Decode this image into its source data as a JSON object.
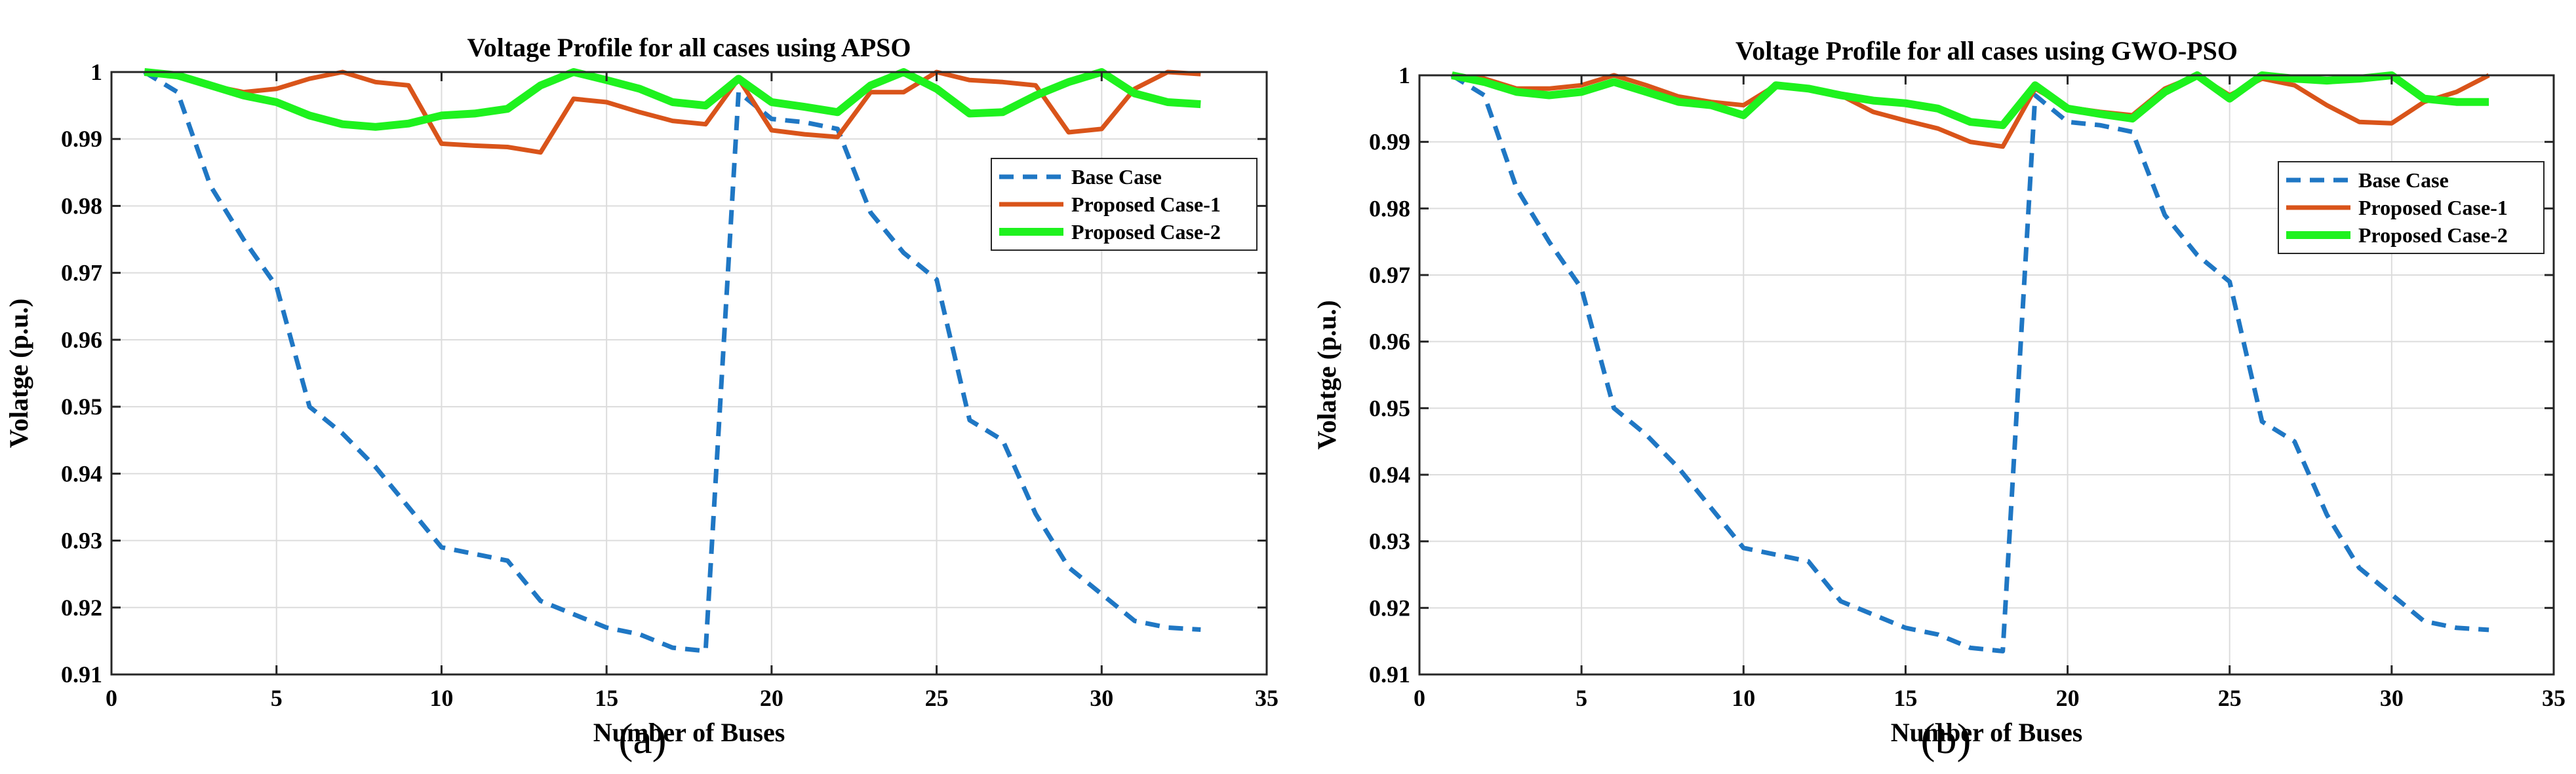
{
  "chart_data": [
    {
      "type": "line",
      "panel_label": "(a)",
      "title": "Voltage Profile for all cases using APSO",
      "xlabel": "Number of Buses",
      "ylabel": "Volatge (p.u.)",
      "xlim": [
        0,
        35
      ],
      "ylim": [
        0.91,
        1.0
      ],
      "xticks": [
        0,
        5,
        10,
        15,
        20,
        25,
        30,
        35
      ],
      "xtick_labels": [
        "0",
        "5",
        "10",
        "15",
        "20",
        "25",
        "30",
        "35"
      ],
      "yticks": [
        0.91,
        0.92,
        0.93,
        0.94,
        0.95,
        0.96,
        0.97,
        0.98,
        0.99,
        1.0
      ],
      "ytick_labels": [
        "0.91",
        "0.92",
        "0.93",
        "0.94",
        "0.95",
        "0.96",
        "0.97",
        "0.98",
        "0.99",
        "1"
      ],
      "grid": true,
      "legend_position": "right",
      "x": [
        1,
        2,
        3,
        4,
        5,
        6,
        7,
        8,
        9,
        10,
        11,
        12,
        13,
        14,
        15,
        16,
        17,
        18,
        19,
        20,
        21,
        22,
        23,
        24,
        25,
        26,
        27,
        28,
        29,
        30,
        31,
        32,
        33
      ],
      "series": [
        {
          "name": "Base Case",
          "color": "#1f77c4",
          "style": "dashed",
          "values": [
            1.0,
            0.997,
            0.983,
            0.975,
            0.968,
            0.95,
            0.946,
            0.941,
            0.935,
            0.929,
            0.928,
            0.927,
            0.921,
            0.919,
            0.917,
            0.916,
            0.914,
            0.9135,
            0.997,
            0.993,
            0.9925,
            0.9915,
            0.979,
            0.973,
            0.969,
            0.948,
            0.945,
            0.934,
            0.926,
            0.922,
            0.918,
            0.917,
            0.9167
          ]
        },
        {
          "name": "Proposed Case-1",
          "color": "#d9541a",
          "style": "solid",
          "values": [
            1.0,
            0.9995,
            0.998,
            0.997,
            0.9975,
            0.999,
            1.0,
            0.9985,
            0.998,
            0.9893,
            0.989,
            0.9888,
            0.988,
            0.996,
            0.9955,
            0.994,
            0.9927,
            0.9922,
            0.999,
            0.9913,
            0.9907,
            0.9903,
            0.997,
            0.997,
            1.0,
            0.9988,
            0.9985,
            0.998,
            0.991,
            0.9915,
            0.9975,
            1.0,
            0.9997
          ]
        },
        {
          "name": "Proposed Case-2",
          "color": "#1ef21e",
          "style": "solid",
          "values": [
            1.0,
            0.9995,
            0.998,
            0.9965,
            0.9955,
            0.9935,
            0.9922,
            0.9918,
            0.9923,
            0.9935,
            0.9938,
            0.9945,
            0.998,
            1.0,
            0.9988,
            0.9975,
            0.9955,
            0.995,
            0.999,
            0.9955,
            0.9948,
            0.994,
            0.998,
            1.0,
            0.9975,
            0.9938,
            0.994,
            0.9965,
            0.9985,
            1.0,
            0.9968,
            0.9955,
            0.9952
          ]
        }
      ]
    },
    {
      "type": "line",
      "panel_label": "(b)",
      "title": "Voltage Profile for all cases using GWO-PSO",
      "xlabel": "Number of Buses",
      "ylabel": "Volatge (p.u.)",
      "xlim": [
        0,
        35
      ],
      "ylim": [
        0.91,
        1.0
      ],
      "xticks": [
        0,
        5,
        10,
        15,
        20,
        25,
        30,
        35
      ],
      "xtick_labels": [
        "0",
        "5",
        "10",
        "15",
        "20",
        "25",
        "30",
        "35"
      ],
      "yticks": [
        0.91,
        0.92,
        0.93,
        0.94,
        0.95,
        0.96,
        0.97,
        0.98,
        0.99,
        1.0
      ],
      "ytick_labels": [
        "0.91",
        "0.92",
        "0.93",
        "0.94",
        "0.95",
        "0.96",
        "0.97",
        "0.98",
        "0.99",
        "1"
      ],
      "grid": true,
      "legend_position": "right",
      "x": [
        1,
        2,
        3,
        4,
        5,
        6,
        7,
        8,
        9,
        10,
        11,
        12,
        13,
        14,
        15,
        16,
        17,
        18,
        19,
        20,
        21,
        22,
        23,
        24,
        25,
        26,
        27,
        28,
        29,
        30,
        31,
        32,
        33
      ],
      "series": [
        {
          "name": "Base Case",
          "color": "#1f77c4",
          "style": "dashed",
          "values": [
            1.0,
            0.997,
            0.983,
            0.975,
            0.968,
            0.95,
            0.946,
            0.941,
            0.935,
            0.929,
            0.928,
            0.927,
            0.921,
            0.919,
            0.917,
            0.916,
            0.914,
            0.9135,
            0.997,
            0.993,
            0.9925,
            0.9915,
            0.979,
            0.973,
            0.969,
            0.948,
            0.945,
            0.934,
            0.926,
            0.922,
            0.918,
            0.917,
            0.9167
          ]
        },
        {
          "name": "Proposed Case-1",
          "color": "#d9541a",
          "style": "solid",
          "values": [
            1.0,
            0.9995,
            0.998,
            0.998,
            0.9985,
            1.0,
            0.9985,
            0.9968,
            0.996,
            0.9955,
            0.9985,
            0.998,
            0.997,
            0.9945,
            0.9932,
            0.992,
            0.99,
            0.9893,
            0.998,
            0.9952,
            0.9945,
            0.994,
            0.998,
            1.0,
            0.997,
            0.9995,
            0.9985,
            0.9955,
            0.993,
            0.9928,
            0.996,
            0.9975,
            1.0
          ]
        },
        {
          "name": "Proposed Case-2",
          "color": "#1ef21e",
          "style": "solid",
          "values": [
            1.0,
            0.999,
            0.9975,
            0.997,
            0.9975,
            0.999,
            0.9975,
            0.996,
            0.9955,
            0.994,
            0.9985,
            0.998,
            0.997,
            0.9962,
            0.9958,
            0.995,
            0.993,
            0.9925,
            0.9985,
            0.995,
            0.9942,
            0.9935,
            0.9975,
            1.0,
            0.9965,
            1.0,
            0.9995,
            0.9992,
            0.9995,
            1.0,
            0.9965,
            0.996,
            0.996
          ]
        }
      ]
    }
  ]
}
